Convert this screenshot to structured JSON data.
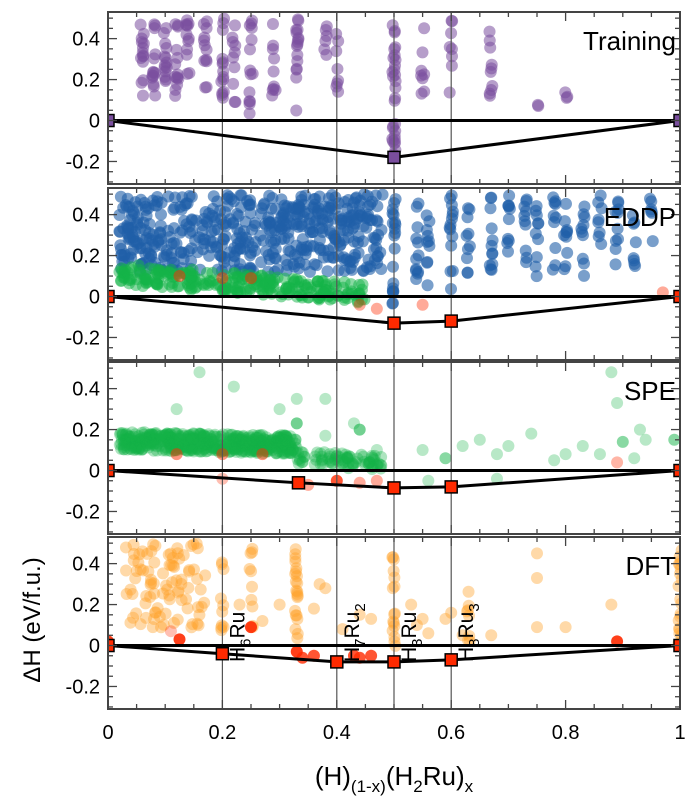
{
  "chart_data": {
    "type": "scatter",
    "xlabel": {
      "base1": "(H)",
      "sub1": "(1-x)",
      "base2": "(H",
      "sub2": "2",
      "base3": "Ru)",
      "sub3": "x"
    },
    "ylabel": "ΔH (eV/f.u.)",
    "xlim": [
      0,
      1
    ],
    "ylim": [
      -0.31,
      0.53
    ],
    "x_ticks": [
      "0",
      "0.2",
      "0.4",
      "0.6",
      "0.8",
      "1"
    ],
    "x_tick_values": [
      0,
      0.2,
      0.4,
      0.6,
      0.8,
      1
    ],
    "y_ticks": [
      "0.4",
      "0.2",
      "0",
      "-0.2"
    ],
    "y_tick_values": [
      0.4,
      0.2,
      0,
      -0.2
    ],
    "reference_lines_x": [
      0.2,
      0.4,
      0.5,
      0.6
    ],
    "phase_labels": [
      {
        "x": 0.2,
        "base": "H",
        "sub": "6",
        "tail": "Ru",
        "sub2": ""
      },
      {
        "x": 0.4,
        "base": "H",
        "sub": "7",
        "tail": "Ru",
        "sub2": "2"
      },
      {
        "x": 0.5,
        "base": "H",
        "sub": "3",
        "tail": "Ru",
        "sub2": ""
      },
      {
        "x": 0.6,
        "base": "H",
        "sub": "8",
        "tail": "Ru",
        "sub2": "3"
      }
    ],
    "colors": {
      "training": "#7a4e9e",
      "eddp": "#1f5fa8",
      "spe": "#14b347",
      "dft": "#ffa126",
      "hull": "#ff2a00"
    },
    "panels": [
      {
        "name": "Training",
        "hull": [
          [
            0,
            0
          ],
          [
            0.5,
            -0.18
          ],
          [
            1,
            0
          ]
        ],
        "clusters": [
          {
            "color": "training",
            "alpha": 0.55,
            "cols": [
              [
                0.06,
                0.1,
                0.5,
                14
              ],
              [
                0.08,
                0.1,
                0.5,
                14
              ],
              [
                0.1,
                0.1,
                0.5,
                14
              ],
              [
                0.12,
                0.12,
                0.5,
                14
              ],
              [
                0.14,
                0.15,
                0.5,
                12
              ],
              [
                0.17,
                0.15,
                0.5,
                12
              ],
              [
                0.2,
                0.05,
                0.5,
                14
              ],
              [
                0.22,
                0.08,
                0.5,
                10
              ],
              [
                0.25,
                0.03,
                0.5,
                14
              ],
              [
                0.29,
                0.12,
                0.5,
                10
              ],
              [
                0.33,
                0.01,
                0.5,
                16
              ],
              [
                0.38,
                0.3,
                0.5,
                6
              ],
              [
                0.4,
                0.1,
                0.45,
                8
              ],
              [
                0.5,
                -0.18,
                0.5,
                30
              ],
              [
                0.55,
                0.12,
                0.5,
                8
              ],
              [
                0.6,
                0.12,
                0.5,
                8
              ],
              [
                0.67,
                0.1,
                0.5,
                10
              ],
              [
                0.75,
                0.07,
                0.09,
                2
              ],
              [
                0.8,
                0.11,
                0.14,
                3
              ]
            ]
          }
        ],
        "points": []
      },
      {
        "name": "EDDP",
        "hull": [
          [
            0,
            0
          ],
          [
            0.5,
            -0.13
          ],
          [
            0.6,
            -0.12
          ],
          [
            1,
            0
          ]
        ],
        "clusters": [
          {
            "color": "eddp",
            "alpha": 0.6,
            "box": [
              0.02,
              0.48,
              0.12,
              0.5,
              500
            ]
          },
          {
            "color": "eddp",
            "alpha": 0.6,
            "cols": [
              [
                0.5,
                -0.1,
                0.5,
                20
              ],
              [
                0.54,
                0.05,
                0.5,
                12
              ],
              [
                0.56,
                0.05,
                0.5,
                10
              ],
              [
                0.6,
                -0.05,
                0.5,
                14
              ],
              [
                0.63,
                0.1,
                0.5,
                10
              ],
              [
                0.67,
                0.05,
                0.5,
                12
              ],
              [
                0.7,
                0.15,
                0.5,
                10
              ],
              [
                0.73,
                0.1,
                0.5,
                10
              ],
              [
                0.75,
                0.05,
                0.5,
                10
              ],
              [
                0.78,
                0.1,
                0.5,
                10
              ],
              [
                0.8,
                0.12,
                0.5,
                10
              ],
              [
                0.83,
                0.1,
                0.5,
                10
              ],
              [
                0.86,
                0.15,
                0.5,
                8
              ],
              [
                0.89,
                0.1,
                0.5,
                10
              ],
              [
                0.92,
                0.12,
                0.5,
                8
              ],
              [
                0.95,
                0.12,
                0.5,
                6
              ]
            ]
          },
          {
            "color": "spe",
            "alpha": 0.5,
            "band": [
              0.02,
              0.45,
              0.06,
              0.16,
              -0.22,
              250
            ]
          }
        ],
        "points": [
          [
            0.125,
            0.1,
            "hull",
            0.5
          ],
          [
            0.2,
            0.09,
            "hull",
            0.5
          ],
          [
            0.25,
            0.09,
            "hull",
            0.5
          ],
          [
            0.44,
            -0.04,
            "hull",
            0.4
          ],
          [
            0.47,
            -0.06,
            "hull",
            0.4
          ],
          [
            0.55,
            -0.04,
            "hull",
            0.4
          ],
          [
            0.97,
            0.02,
            "hull",
            0.4
          ]
        ]
      },
      {
        "name": "SPE",
        "hull": [
          [
            0,
            0
          ],
          [
            0.333,
            -0.06
          ],
          [
            0.5,
            -0.085
          ],
          [
            0.6,
            -0.08
          ],
          [
            1,
            0
          ]
        ],
        "clusters": [
          {
            "color": "spe",
            "alpha": 0.35,
            "band": [
              0.02,
              0.33,
              0.1,
              0.19,
              -0.06,
              500
            ]
          },
          {
            "color": "spe",
            "alpha": 0.35,
            "band": [
              0.33,
              0.48,
              0.03,
              0.1,
              -0.2,
              80
            ]
          }
        ],
        "points": [
          [
            0.16,
            0.48,
            "spe",
            0.3
          ],
          [
            0.22,
            0.41,
            "spe",
            0.3
          ],
          [
            0.12,
            0.3,
            "spe",
            0.3
          ],
          [
            0.3,
            0.3,
            "spe",
            0.3
          ],
          [
            0.33,
            0.35,
            "spe",
            0.3
          ],
          [
            0.33,
            0.23,
            "spe",
            0.6
          ],
          [
            0.38,
            0.35,
            "spe",
            0.3
          ],
          [
            0.43,
            0.23,
            "spe",
            0.3
          ],
          [
            0.44,
            0.2,
            "spe",
            0.6
          ],
          [
            0.38,
            0.17,
            "spe",
            0.3
          ],
          [
            0.47,
            0.1,
            "spe",
            0.3
          ],
          [
            0.55,
            0.1,
            "spe",
            0.3
          ],
          [
            0.59,
            0.06,
            "spe",
            0.5
          ],
          [
            0.62,
            0.12,
            "spe",
            0.3
          ],
          [
            0.65,
            0.15,
            "spe",
            0.3
          ],
          [
            0.68,
            0.08,
            "spe",
            0.3
          ],
          [
            0.7,
            0.12,
            "spe",
            0.3
          ],
          [
            0.74,
            0.18,
            "spe",
            0.3
          ],
          [
            0.78,
            0.05,
            "spe",
            0.3
          ],
          [
            0.8,
            0.08,
            "spe",
            0.3
          ],
          [
            0.83,
            0.12,
            "spe",
            0.3
          ],
          [
            0.86,
            0.08,
            "spe",
            0.3
          ],
          [
            0.88,
            0.48,
            "spe",
            0.3
          ],
          [
            0.89,
            0.33,
            "spe",
            0.3
          ],
          [
            0.9,
            0.14,
            "spe",
            0.5
          ],
          [
            0.93,
            0.2,
            "spe",
            0.3
          ],
          [
            0.94,
            0.15,
            "spe",
            0.3
          ],
          [
            0.92,
            0.06,
            "spe",
            0.3
          ],
          [
            0.99,
            0.15,
            "spe",
            0.5
          ],
          [
            0.56,
            -0.05,
            "spe",
            0.3
          ],
          [
            0.68,
            -0.04,
            "spe",
            0.3
          ],
          [
            0.12,
            0.08,
            "hull",
            0.5
          ],
          [
            0.2,
            0.08,
            "hull",
            0.5
          ],
          [
            0.27,
            0.08,
            "hull",
            0.5
          ],
          [
            0.2,
            -0.04,
            "hull",
            0.3
          ],
          [
            0.35,
            -0.07,
            "hull",
            0.4
          ],
          [
            0.4,
            -0.05,
            "hull",
            0.8
          ],
          [
            0.44,
            -0.06,
            "hull",
            0.4
          ],
          [
            0.47,
            -0.05,
            "hull",
            0.4
          ],
          [
            0.89,
            0.04,
            "hull",
            0.35
          ]
        ]
      },
      {
        "name": "DFT",
        "hull": [
          [
            0,
            0
          ],
          [
            0.2,
            -0.04
          ],
          [
            0.4,
            -0.08
          ],
          [
            0.5,
            -0.08
          ],
          [
            0.6,
            -0.07
          ],
          [
            1,
            0
          ]
        ],
        "clusters": [
          {
            "color": "dft",
            "alpha": 0.4,
            "box": [
              0.03,
              0.17,
              0.08,
              0.5,
              90
            ]
          },
          {
            "color": "dft",
            "alpha": 0.4,
            "cols": [
              [
                0.2,
                0.0,
                0.42,
                10
              ],
              [
                0.25,
                0.08,
                0.48,
                10
              ],
              [
                0.33,
                0.02,
                0.5,
                22
              ],
              [
                0.5,
                -0.05,
                0.45,
                16
              ],
              [
                0.63,
                0.0,
                0.3,
                8
              ],
              [
                1.0,
                0.0,
                0.5,
                20
              ]
            ]
          }
        ],
        "points": [
          [
            0.23,
            0.2,
            "dft",
            0.4
          ],
          [
            0.27,
            0.12,
            "dft",
            0.4
          ],
          [
            0.3,
            0.2,
            "dft",
            0.4
          ],
          [
            0.36,
            0.18,
            "dft",
            0.4
          ],
          [
            0.37,
            0.3,
            "dft",
            0.4
          ],
          [
            0.38,
            0.28,
            "dft",
            0.4
          ],
          [
            0.41,
            0.08,
            "dft",
            0.4
          ],
          [
            0.44,
            0.15,
            "dft",
            0.4
          ],
          [
            0.46,
            0.13,
            "dft",
            0.4
          ],
          [
            0.53,
            0.2,
            "dft",
            0.4
          ],
          [
            0.54,
            0.1,
            "dft",
            0.4
          ],
          [
            0.55,
            0.13,
            "dft",
            0.4
          ],
          [
            0.56,
            0.06,
            "dft",
            0.4
          ],
          [
            0.59,
            0.13,
            "dft",
            0.4
          ],
          [
            0.6,
            0.16,
            "dft",
            0.4
          ],
          [
            0.62,
            0.05,
            "dft",
            0.4
          ],
          [
            0.67,
            0.05,
            "dft",
            0.4
          ],
          [
            0.75,
            0.33,
            "dft",
            0.4
          ],
          [
            0.75,
            0.45,
            "dft",
            0.4
          ],
          [
            0.75,
            0.09,
            "dft",
            0.4
          ],
          [
            0.8,
            0.09,
            "dft",
            0.4
          ],
          [
            0.88,
            0.2,
            "dft",
            0.4
          ],
          [
            0.25,
            0.09,
            "hull",
            0.9
          ],
          [
            0.125,
            0.03,
            "hull",
            0.9
          ],
          [
            0.11,
            0.07,
            "hull",
            0.3
          ],
          [
            0.33,
            -0.03,
            "hull",
            0.9
          ],
          [
            0.34,
            -0.06,
            "hull",
            0.8
          ],
          [
            0.36,
            -0.05,
            "hull",
            0.8
          ],
          [
            0.43,
            -0.05,
            "hull",
            0.8
          ],
          [
            0.44,
            -0.06,
            "hull",
            0.8
          ],
          [
            0.46,
            -0.05,
            "hull",
            0.8
          ],
          [
            0.89,
            0.02,
            "hull",
            0.9
          ],
          [
            0.0,
            0.02,
            "hull",
            0.9
          ]
        ]
      }
    ]
  }
}
